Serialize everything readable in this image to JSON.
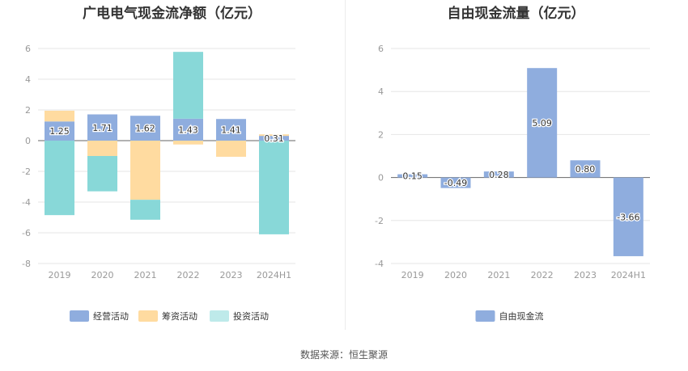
{
  "footer": {
    "source": "数据来源：恒生聚源"
  },
  "chart_data": [
    {
      "type": "bar",
      "stacked": true,
      "title": "广电电气现金流净额（亿元）",
      "categories": [
        "2019",
        "2020",
        "2021",
        "2022",
        "2023",
        "2024H1"
      ],
      "ylim": [
        -8,
        6
      ],
      "yticks": [
        6,
        4,
        2,
        0,
        -2,
        -4,
        -6,
        -8
      ],
      "grid": true,
      "legend_position": "bottom",
      "series": [
        {
          "name": "经营活动",
          "color": "#8fadde",
          "values": [
            1.25,
            1.71,
            1.62,
            1.43,
            1.41,
            0.31
          ],
          "labels": [
            "1.25",
            "1.71",
            "1.62",
            "1.43",
            "1.41",
            "0.31"
          ]
        },
        {
          "name": "筹资活动",
          "color": "#ffdba0",
          "values": [
            0.7,
            -1.0,
            -3.85,
            -0.25,
            -1.05,
            0.1
          ]
        },
        {
          "name": "投资活动",
          "color": "#88d8d8",
          "values": [
            -4.85,
            -2.3,
            -1.3,
            4.35,
            0.0,
            -6.1
          ]
        }
      ]
    },
    {
      "type": "bar",
      "title": "自由现金流量（亿元）",
      "categories": [
        "2019",
        "2020",
        "2021",
        "2022",
        "2023",
        "2024H1"
      ],
      "ylim": [
        -4,
        6
      ],
      "yticks": [
        6,
        4,
        2,
        0,
        -2,
        -4
      ],
      "grid": true,
      "legend_position": "bottom",
      "series": [
        {
          "name": "自由现金流",
          "color": "#8fadde",
          "values": [
            0.15,
            -0.49,
            0.28,
            5.09,
            0.8,
            -3.66
          ],
          "labels": [
            "0.15",
            "-0.49",
            "0.28",
            "5.09",
            "0.80",
            "-3.66"
          ]
        }
      ]
    }
  ]
}
